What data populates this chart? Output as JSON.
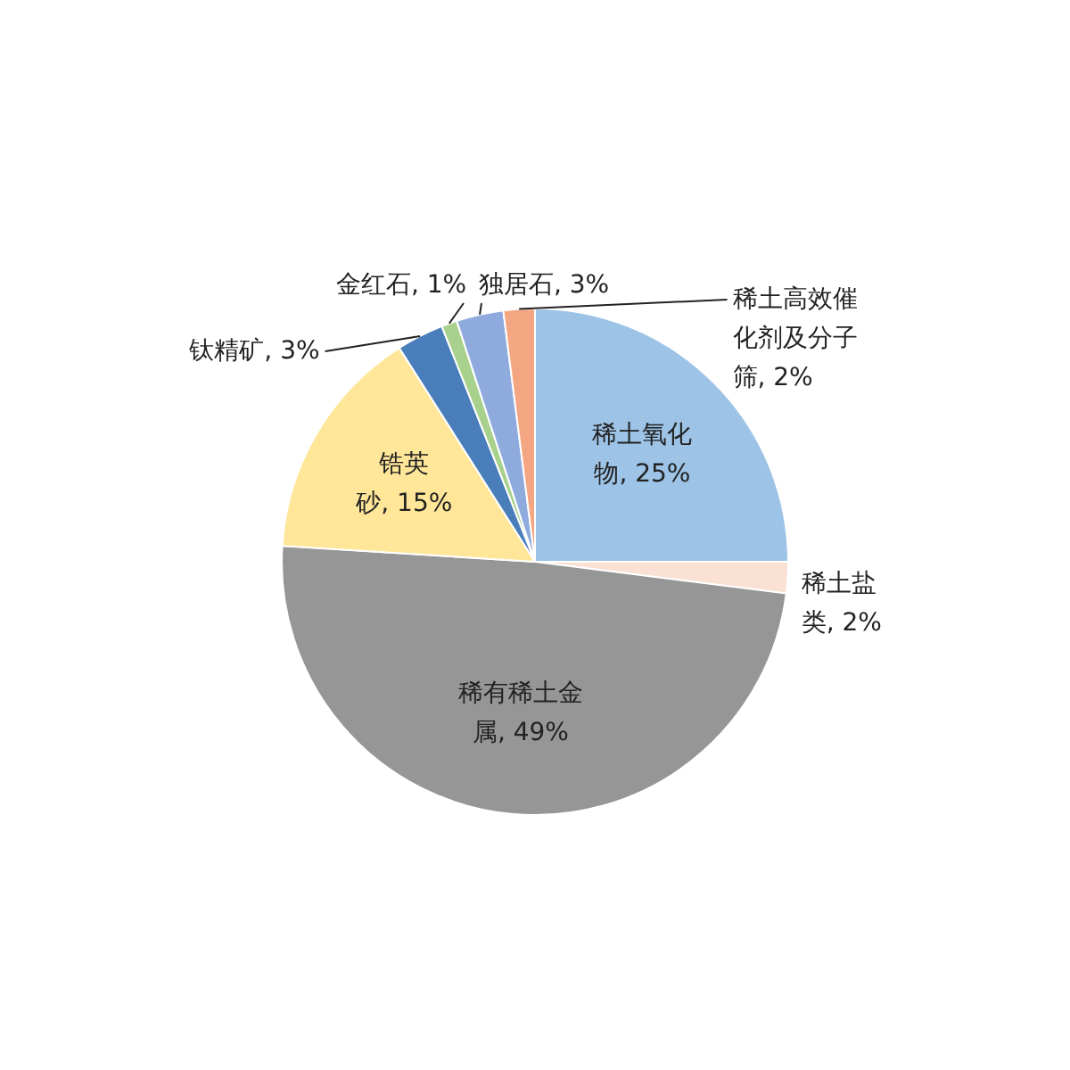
{
  "chart_data": {
    "type": "pie",
    "categories": [
      "稀土氧化物",
      "稀土盐类",
      "稀有稀土金属",
      "锆英砂",
      "钛精矿",
      "金红石",
      "独居石",
      "稀土高效催化剂及分子筛"
    ],
    "values": [
      25,
      2,
      49,
      15,
      3,
      1,
      3,
      2
    ],
    "value_labels": [
      "25%",
      "2%",
      "49%",
      "15%",
      "3%",
      "1%",
      "3%",
      "2%"
    ],
    "colors": [
      "#9dc3e6",
      "#fbe0d4",
      "#969696",
      "#ffe699",
      "#4a7ebb",
      "#a9d18e",
      "#8faadc",
      "#f4a582"
    ]
  }
}
